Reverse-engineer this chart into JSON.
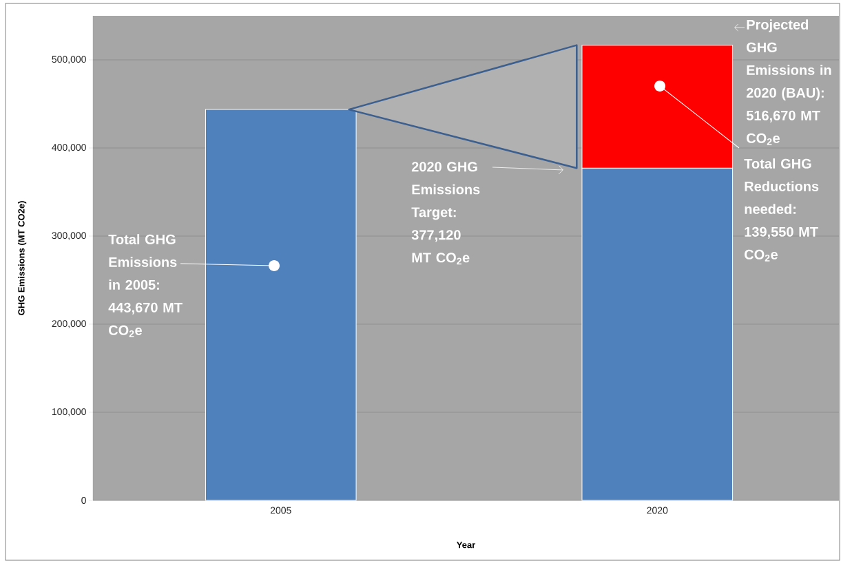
{
  "chart_data": {
    "type": "bar",
    "stacked": true,
    "categories": [
      "2005",
      "2020"
    ],
    "series": [
      {
        "color": "#4f81bd",
        "values": [
          443670,
          377120
        ]
      },
      {
        "color": "#ff0000",
        "values": [
          null,
          139550
        ]
      }
    ],
    "xlabel": "Year",
    "ylabel": "GHG Emissions (MT CO2e)",
    "ylim": [
      0,
      550000
    ],
    "yticks": [
      0,
      {
        "value": 100000,
        "label": "100,000"
      },
      {
        "value": 200000,
        "label": "200,000"
      },
      {
        "value": 300000,
        "label": "300,000"
      },
      {
        "value": 400000,
        "label": "400,000"
      },
      {
        "value": 500000,
        "label": "500,000"
      }
    ],
    "grid": "y",
    "annotations": [
      "Total GHG Emissions in 2005: 443,670 MT CO$_{2}$e",
      "2020 GHG Emissions Target: 377,120 MT CO$_{2}$e",
      "Projected GHG Emissions in 2020 (BAU): 516,670 MT CO$_{2}$e",
      "Total GHG Reductions needed: 139,550 MT CO$_{2}$e"
    ]
  }
}
